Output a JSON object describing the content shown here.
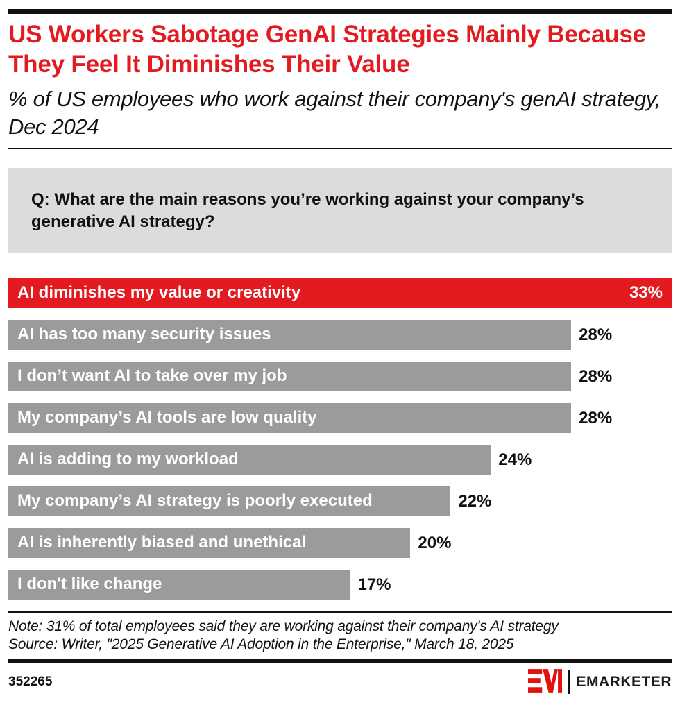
{
  "header": {
    "title": "US Workers Sabotage GenAI Strategies Mainly Because They Feel It Diminishes Their Value",
    "subtitle": "% of US employees who work against their company's genAI strategy, Dec 2024"
  },
  "question": "Q: What are the main reasons you’re working against your company’s generative AI strategy?",
  "chart_data": {
    "type": "bar",
    "orientation": "horizontal",
    "title": "% of US employees who work against their company's genAI strategy, Dec 2024",
    "categories": [
      "AI diminishes my value or creativity",
      "AI has too many security issues",
      "I don’t want AI to take over my job",
      "My company’s AI tools are low quality",
      "AI is adding to my workload",
      "My company’s AI strategy is poorly executed",
      "AI is inherently biased and unethical",
      "I don't like change"
    ],
    "values": [
      33,
      28,
      28,
      28,
      24,
      22,
      20,
      17
    ],
    "value_labels": [
      "33%",
      "28%",
      "28%",
      "28%",
      "24%",
      "22%",
      "20%",
      "17%"
    ],
    "xlim": [
      0,
      33
    ],
    "grid": false,
    "legend": false,
    "highlight_index": 0,
    "colors": {
      "highlight": "#e31b20",
      "default": "#9b9b9b"
    }
  },
  "footnote": {
    "note": "Note: 31% of total employees said they are working against their company's AI strategy",
    "source": "Source: Writer, \"2025 Generative AI Adoption in the Enterprise,\" March 18, 2025"
  },
  "footer": {
    "chart_id": "352265",
    "brand": "EMARKETER"
  }
}
